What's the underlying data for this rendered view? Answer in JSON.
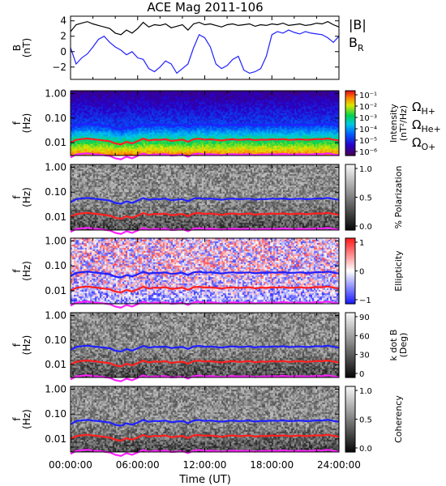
{
  "chart_data": {
    "title": "ACE Mag 2011-106",
    "type": "line",
    "x_axis": {
      "label": "Time (UT)",
      "range_hours": [
        0,
        24
      ],
      "tick_labels": [
        "00:00:00",
        "06:00:00",
        "12:00:00",
        "18:00:00",
        "24:00:00"
      ]
    },
    "panels": [
      {
        "kind": "line",
        "ylabel_lines": [
          "B",
          "(nT)"
        ],
        "ylim": [
          -3.6,
          4.6
        ],
        "y_ticks": [
          4,
          2,
          0,
          -2
        ],
        "y_tick_labels": [
          "4",
          "2",
          "0",
          "−2"
        ],
        "legend": [
          {
            "label": "|B|",
            "sub": "",
            "color": "#000000"
          },
          {
            "label": "B",
            "sub": "R",
            "color": "#2020ff"
          }
        ],
        "series": [
          {
            "name": "|B|",
            "color": "#000000",
            "x": [
              0,
              0.5,
              1,
              1.5,
              2,
              2.5,
              3,
              3.5,
              4,
              4.5,
              5,
              5.5,
              6,
              6.5,
              7,
              7.5,
              8,
              8.5,
              9,
              9.5,
              10,
              10.5,
              11,
              11.5,
              12,
              12.5,
              13,
              13.5,
              14,
              14.5,
              15,
              15.5,
              16,
              16.5,
              17,
              17.5,
              18,
              18.5,
              19,
              19.5,
              20,
              20.5,
              21,
              21.5,
              22,
              22.5,
              23,
              23.5,
              24
            ],
            "y": [
              2.6,
              3.5,
              3.7,
              3.9,
              3.6,
              3.4,
              3.2,
              3.0,
              2.4,
              2.2,
              2.8,
              2.4,
              3.0,
              3.8,
              3.2,
              3.5,
              3.4,
              3.6,
              3.1,
              3.3,
              3.5,
              2.8,
              3.6,
              3.8,
              3.5,
              3.6,
              3.4,
              3.2,
              3.5,
              3.6,
              3.4,
              3.5,
              3.6,
              3.3,
              3.5,
              3.4,
              3.6,
              3.5,
              3.7,
              3.4,
              3.5,
              3.6,
              3.4,
              3.5,
              3.7,
              3.6,
              3.9,
              3.5,
              3.2
            ]
          },
          {
            "name": "B_R",
            "color": "#2020ff",
            "x": [
              0,
              0.5,
              1,
              1.5,
              2,
              2.5,
              3,
              3.5,
              4,
              4.5,
              5,
              5.5,
              6,
              6.5,
              7,
              7.5,
              8,
              8.5,
              9,
              9.5,
              10,
              10.5,
              11,
              11.5,
              12,
              12.5,
              13,
              13.5,
              14,
              14.5,
              15,
              15.5,
              16,
              16.5,
              17,
              17.5,
              18,
              18.5,
              19,
              19.5,
              20,
              20.5,
              21,
              21.5,
              22,
              22.5,
              23,
              23.5,
              24
            ],
            "y": [
              0.5,
              -1.6,
              -0.8,
              -0.3,
              0.6,
              1.6,
              2.0,
              1.2,
              0.6,
              0.2,
              -0.4,
              0.0,
              -0.8,
              -1.0,
              -2.2,
              -2.6,
              -2.0,
              -1.2,
              -1.6,
              -2.8,
              -2.2,
              -1.6,
              0.5,
              2.2,
              1.8,
              0.6,
              -1.6,
              -2.2,
              -1.8,
              -1.0,
              -0.6,
              -2.4,
              -2.8,
              -2.6,
              -2.2,
              -0.6,
              2.2,
              2.6,
              2.4,
              2.8,
              2.5,
              2.3,
              2.6,
              2.4,
              2.3,
              2.2,
              1.8,
              1.2,
              2.0
            ]
          }
        ]
      },
      {
        "kind": "spectrogram",
        "colormap": "rainbow",
        "ylabel_lines": [
          "f",
          "(Hz)"
        ],
        "colorbar": {
          "tick_labels": [
            "10⁻¹",
            "10⁻²",
            "10⁻³",
            "10⁻⁴",
            "10⁻⁵",
            "10⁻⁶"
          ],
          "label_lines": [
            "Intensity",
            "(nT²/Hz)"
          ]
        },
        "legend": [
          {
            "label": "Ω",
            "sub": "H+",
            "color": "#2020ff"
          },
          {
            "label": "Ω",
            "sub": "He+",
            "color": "#ff2020"
          },
          {
            "label": "Ω",
            "sub": "O+",
            "color": "#ff20ff"
          }
        ]
      },
      {
        "kind": "spectrogram",
        "colormap": "gray",
        "ylabel_lines": [
          "f",
          "(Hz)"
        ],
        "colorbar": {
          "tick_labels": [
            "1.0",
            "0.5",
            "0.0"
          ],
          "label_lines": [
            "% Polarization"
          ]
        }
      },
      {
        "kind": "spectrogram",
        "colormap": "bwr",
        "ylabel_lines": [
          "f",
          "(Hz)"
        ],
        "colorbar": {
          "tick_labels": [
            "1",
            "0",
            "−1"
          ],
          "label_lines": [
            "Ellipticity"
          ]
        }
      },
      {
        "kind": "spectrogram",
        "colormap": "gray",
        "ylabel_lines": [
          "f",
          "(Hz)"
        ],
        "colorbar": {
          "tick_labels": [
            "90",
            "60",
            "30",
            "0"
          ],
          "label_lines": [
            "k dot B",
            "(Deg)"
          ]
        }
      },
      {
        "kind": "spectrogram",
        "colormap": "gray",
        "ylabel_lines": [
          "f",
          "(Hz)"
        ],
        "colorbar": {
          "tick_labels": [
            "1.0",
            "0.5",
            "0.0"
          ],
          "label_lines": [
            "Coherency"
          ]
        }
      }
    ],
    "frequency_axis": {
      "scale": "log",
      "range_hz": [
        0.003,
        1.3
      ],
      "tick_values": [
        1.0,
        0.1,
        0.01
      ],
      "tick_labels": [
        "1.00",
        "0.10",
        "0.01"
      ]
    },
    "gyrofrequency_lines": [
      {
        "name": "ΩH+",
        "color": "#2020ff",
        "x": [
          0,
          0.5,
          1,
          1.5,
          2,
          2.5,
          3,
          3.5,
          4,
          4.5,
          5,
          5.5,
          6,
          6.5,
          7,
          7.5,
          8,
          8.5,
          9,
          9.5,
          10,
          10.5,
          11,
          11.5,
          12,
          12.5,
          13,
          13.5,
          14,
          14.5,
          15,
          15.5,
          16,
          16.5,
          17,
          17.5,
          18,
          18.5,
          19,
          19.5,
          20,
          20.5,
          21,
          21.5,
          22,
          22.5,
          23,
          23.5,
          24
        ],
        "y": [
          0.039,
          0.052,
          0.056,
          0.059,
          0.055,
          0.052,
          0.049,
          0.046,
          0.037,
          0.034,
          0.043,
          0.037,
          0.046,
          0.058,
          0.049,
          0.053,
          0.052,
          0.055,
          0.047,
          0.05,
          0.053,
          0.043,
          0.055,
          0.058,
          0.053,
          0.055,
          0.052,
          0.049,
          0.053,
          0.055,
          0.052,
          0.053,
          0.055,
          0.05,
          0.053,
          0.052,
          0.055,
          0.053,
          0.056,
          0.052,
          0.053,
          0.055,
          0.052,
          0.053,
          0.056,
          0.055,
          0.059,
          0.053,
          0.049
        ]
      },
      {
        "name": "ΩHe+",
        "color": "#ff2020",
        "x": [
          0,
          0.5,
          1,
          1.5,
          2,
          2.5,
          3,
          3.5,
          4,
          4.5,
          5,
          5.5,
          6,
          6.5,
          7,
          7.5,
          8,
          8.5,
          9,
          9.5,
          10,
          10.5,
          11,
          11.5,
          12,
          12.5,
          13,
          13.5,
          14,
          14.5,
          15,
          15.5,
          16,
          16.5,
          17,
          17.5,
          18,
          18.5,
          19,
          19.5,
          20,
          20.5,
          21,
          21.5,
          22,
          22.5,
          23,
          23.5,
          24
        ],
        "y": [
          0.01,
          0.013,
          0.014,
          0.0148,
          0.0138,
          0.013,
          0.0122,
          0.0115,
          0.0093,
          0.0085,
          0.0108,
          0.0093,
          0.0115,
          0.0145,
          0.0122,
          0.0133,
          0.013,
          0.0138,
          0.0118,
          0.0125,
          0.0133,
          0.0108,
          0.0138,
          0.0145,
          0.0133,
          0.0138,
          0.013,
          0.0122,
          0.0133,
          0.0138,
          0.013,
          0.0133,
          0.0138,
          0.0125,
          0.0133,
          0.013,
          0.0138,
          0.0133,
          0.014,
          0.013,
          0.0133,
          0.0138,
          0.013,
          0.0133,
          0.014,
          0.0138,
          0.0148,
          0.0133,
          0.0122
        ]
      },
      {
        "name": "ΩO+",
        "color": "#ff20ff",
        "x": [
          0,
          0.5,
          1,
          1.5,
          2,
          2.5,
          3,
          3.5,
          4,
          4.5,
          5,
          5.5,
          6,
          6.5,
          7,
          7.5,
          8,
          8.5,
          9,
          9.5,
          10,
          10.5,
          11,
          11.5,
          12,
          12.5,
          13,
          13.5,
          14,
          14.5,
          15,
          15.5,
          16,
          16.5,
          17,
          17.5,
          18,
          18.5,
          19,
          19.5,
          20,
          20.5,
          21,
          21.5,
          22,
          22.5,
          23,
          23.5,
          24
        ],
        "y": [
          0.0025,
          0.0033,
          0.0035,
          0.0037,
          0.0034,
          0.0033,
          0.0031,
          0.0029,
          0.0023,
          0.0021,
          0.0027,
          0.0023,
          0.0029,
          0.0036,
          0.0031,
          0.0033,
          0.0033,
          0.0034,
          0.003,
          0.0031,
          0.0033,
          0.0027,
          0.0034,
          0.0036,
          0.0033,
          0.0034,
          0.0033,
          0.0031,
          0.0033,
          0.0034,
          0.0033,
          0.0033,
          0.0034,
          0.0031,
          0.0033,
          0.0033,
          0.0034,
          0.0033,
          0.0035,
          0.0033,
          0.0033,
          0.0034,
          0.0033,
          0.0033,
          0.0035,
          0.0034,
          0.0037,
          0.0033,
          0.0031
        ]
      }
    ]
  }
}
